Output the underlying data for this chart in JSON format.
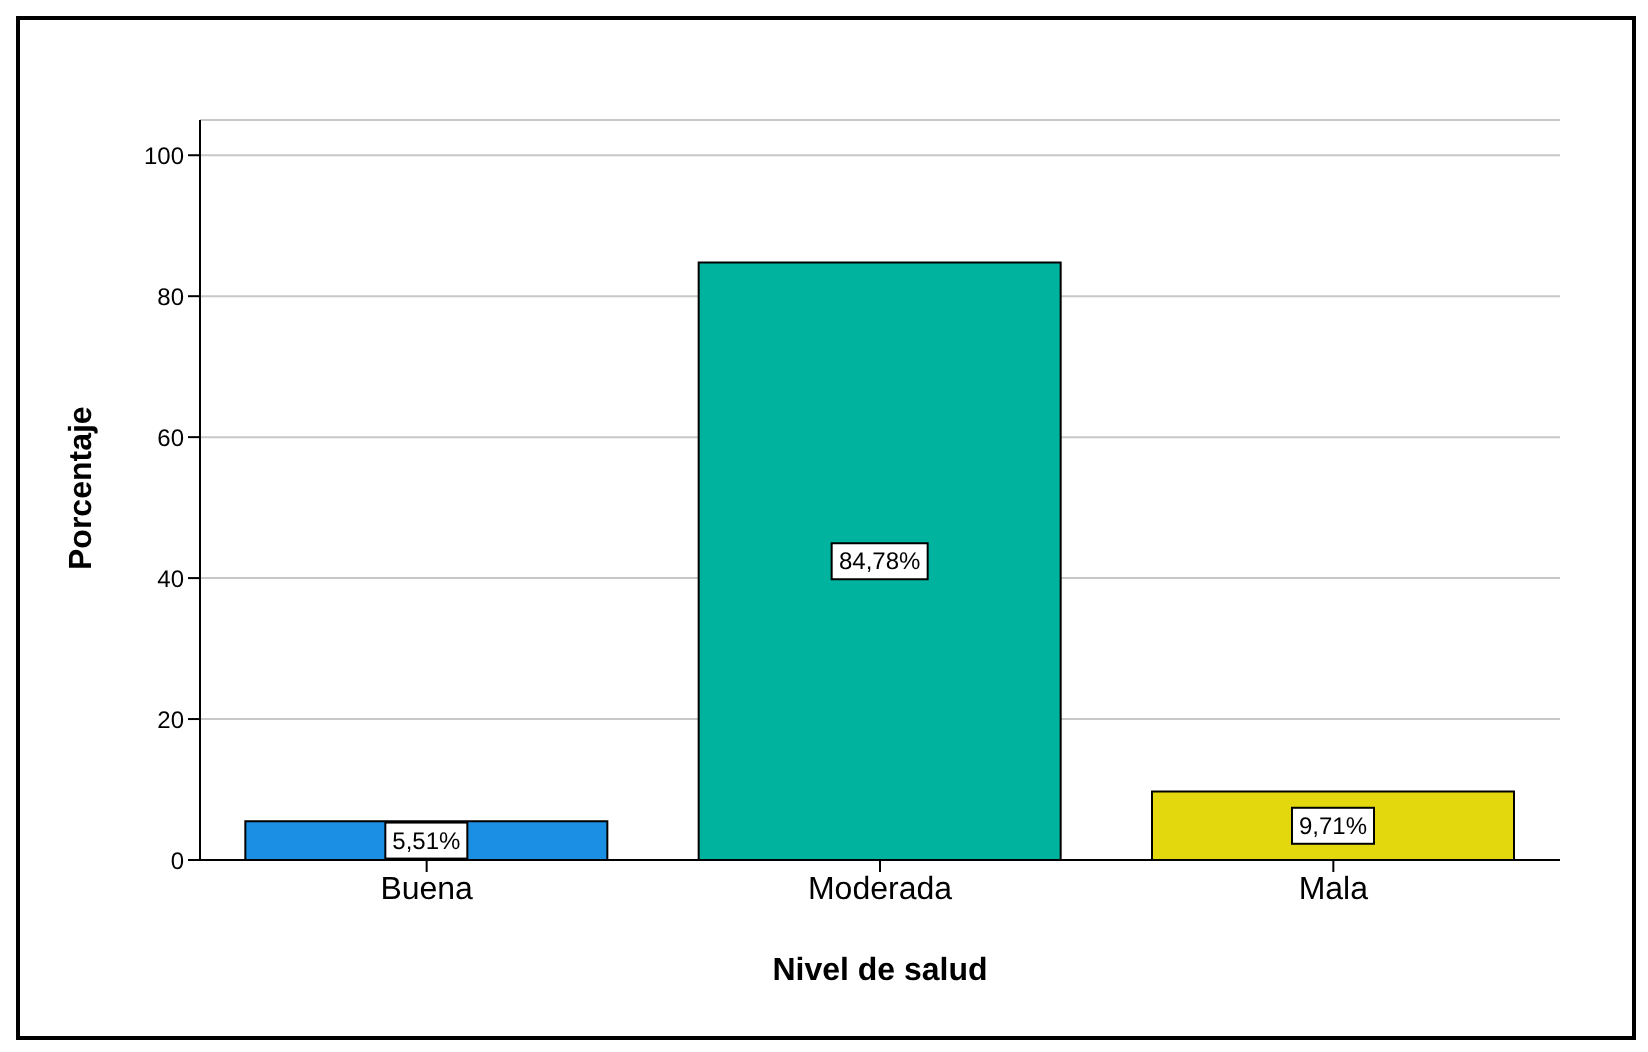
{
  "chart_data": {
    "type": "bar",
    "xlabel": "Nivel de salud",
    "ylabel": "Porcentaje",
    "categories": [
      "Buena",
      "Moderada",
      "Mala"
    ],
    "values": [
      5.51,
      84.78,
      9.71
    ],
    "colors": [
      "#1a8fe3",
      "#00b39e",
      "#e3d80e"
    ],
    "value_labels": [
      "5,51%",
      "84,78%",
      "9,71%"
    ],
    "ylim": [
      0,
      105
    ],
    "yticks": [
      0,
      20,
      40,
      60,
      80,
      100
    ],
    "grid": "y"
  }
}
